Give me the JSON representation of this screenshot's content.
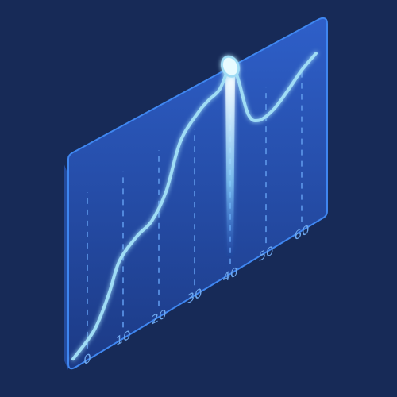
{
  "colors": {
    "background": "#172a57",
    "panel_top": "#2e5fc9",
    "panel_bottom": "#1c3a85",
    "panel_edge": "#3f86f0",
    "line": "#9fdcf5",
    "gridline": "#5a93e6",
    "tick_label": "#6fa8ee",
    "highlight": "#e8fbff"
  },
  "chart_data": {
    "type": "line",
    "title": "",
    "xlabel": "",
    "ylabel": "",
    "x_ticks": [
      "0",
      "10",
      "20",
      "30",
      "40",
      "50",
      "60"
    ],
    "xlim": [
      0,
      65
    ],
    "ylim": [
      0,
      100
    ],
    "grid": "vertical dashed lines",
    "series": [
      {
        "x": [
          -4,
          2,
          6,
          9,
          14,
          18,
          22,
          26,
          31,
          34,
          37,
          40,
          42,
          45,
          48,
          52,
          56,
          60,
          64
        ],
        "values": [
          4,
          12,
          25,
          38,
          45,
          48,
          58,
          78,
          87,
          90,
          92,
          100,
          93,
          72,
          66,
          67,
          72,
          78,
          82
        ]
      }
    ],
    "highlight": {
      "x": 40,
      "value": 100
    }
  }
}
